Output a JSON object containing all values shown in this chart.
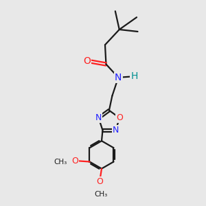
{
  "bg_color": "#e8e8e8",
  "bond_color": "#1a1a1a",
  "N_color": "#2020ff",
  "O_color": "#ff2020",
  "H_color": "#009090",
  "line_width": 1.6,
  "figsize": [
    3.0,
    3.0
  ],
  "dpi": 100,
  "xlim": [
    0,
    10
  ],
  "ylim": [
    0,
    10
  ]
}
